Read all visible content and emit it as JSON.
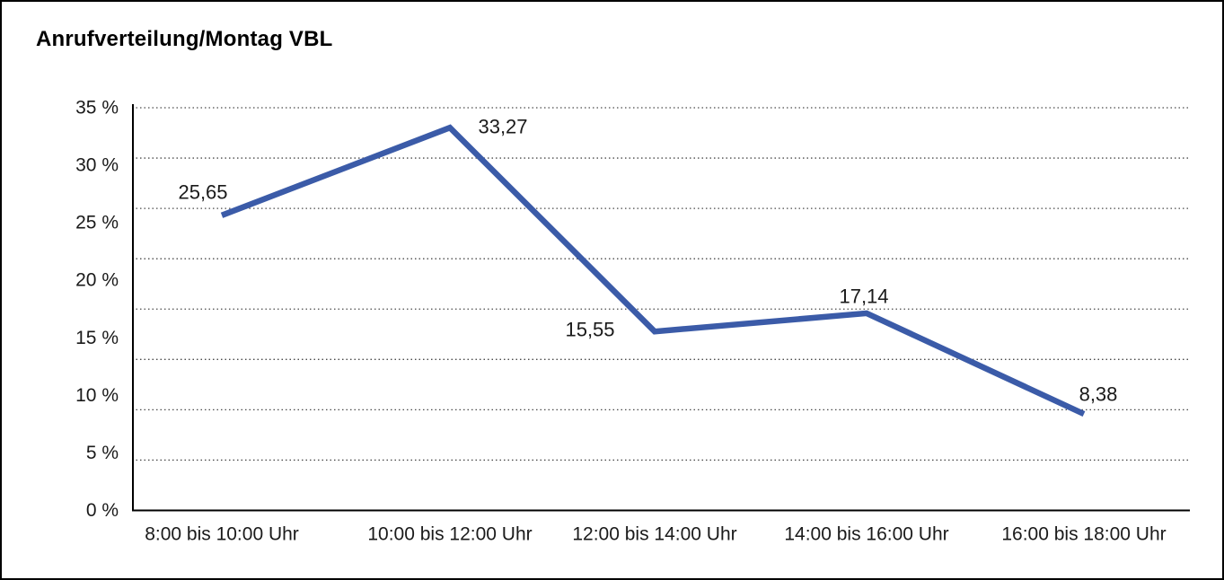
{
  "window": {
    "background_color": "#ffffff",
    "border_color": "#000000"
  },
  "chart_data": {
    "type": "line",
    "title": "Anrufverteilung/Montag VBL",
    "categories": [
      "8:00 bis 10:00 Uhr",
      "10:00 bis 12:00 Uhr",
      "12:00 bis 14:00 Uhr",
      "14:00 bis 16:00 Uhr",
      "16:00 bis 18:00 Uhr"
    ],
    "values": [
      25.65,
      33.27,
      15.55,
      17.14,
      8.38
    ],
    "value_labels": [
      "25,65",
      "33,27",
      "15,55",
      "17,14",
      "8,38"
    ],
    "xlabel": "",
    "ylabel": "",
    "ylim": [
      0,
      35
    ],
    "ytick_interval": 5,
    "ytick_labels_top_to_bottom": [
      "35 %",
      "30 %",
      "25 %",
      "20 %",
      "15 %",
      "10 %",
      "5 %",
      "0 %"
    ],
    "grid": "horizontal dotted",
    "legend_position": "none",
    "line_color": "#3B5BA8",
    "axis_color": "#000000",
    "gridline_color": "#4a4a4a",
    "text_color": "#1a1a1a"
  }
}
